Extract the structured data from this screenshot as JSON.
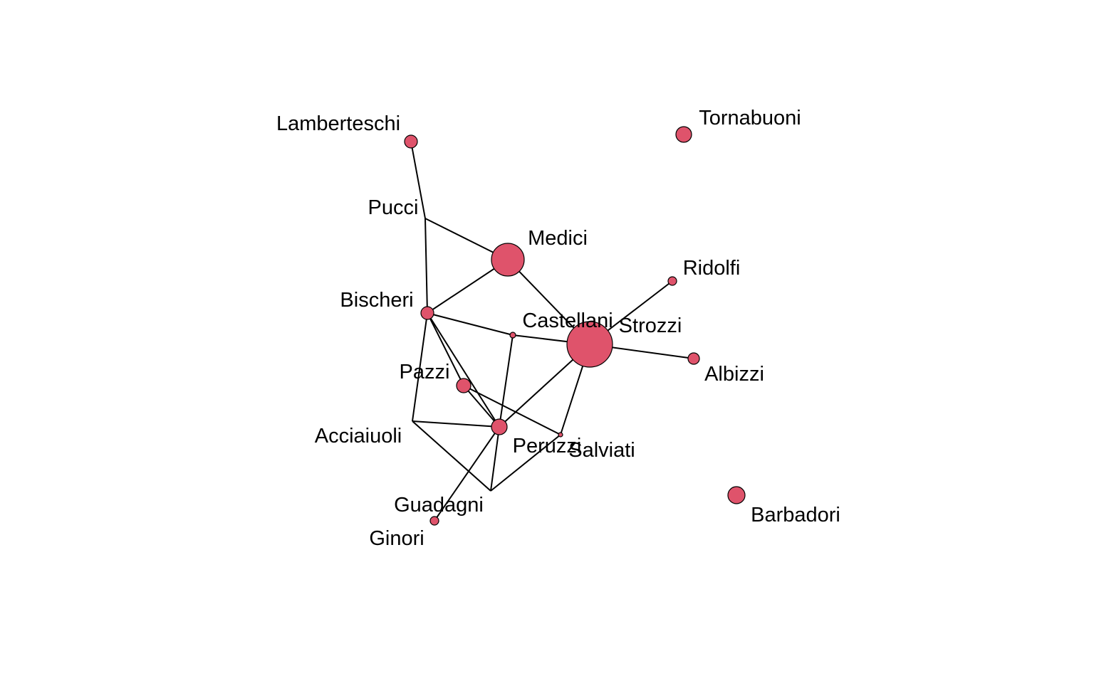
{
  "node_color": "#df536b",
  "edge_color": "#000000",
  "nodes": [
    {
      "id": "Lamberteschi",
      "label": "Lamberteschi"
    },
    {
      "id": "Tornabuoni",
      "label": "Tornabuoni"
    },
    {
      "id": "Pucci",
      "label": "Pucci"
    },
    {
      "id": "Medici",
      "label": "Medici"
    },
    {
      "id": "Ridolfi",
      "label": "Ridolfi"
    },
    {
      "id": "Bischeri",
      "label": "Bischeri"
    },
    {
      "id": "Castellani",
      "label": "Castellani"
    },
    {
      "id": "Strozzi",
      "label": "Strozzi"
    },
    {
      "id": "Albizzi",
      "label": "Albizzi"
    },
    {
      "id": "Pazzi",
      "label": "Pazzi"
    },
    {
      "id": "Acciaiuoli",
      "label": "Acciaiuoli"
    },
    {
      "id": "Peruzzi",
      "label": "Peruzzi"
    },
    {
      "id": "Salviati",
      "label": "Salviati"
    },
    {
      "id": "Guadagni",
      "label": "Guadagni"
    },
    {
      "id": "Ginori",
      "label": "Ginori"
    },
    {
      "id": "Barbadori",
      "label": "Barbadori"
    }
  ],
  "edges": [
    [
      "Lamberteschi",
      "Pucci"
    ],
    [
      "Pucci",
      "Medici"
    ],
    [
      "Pucci",
      "Bischeri"
    ],
    [
      "Medici",
      "Bischeri"
    ],
    [
      "Medici",
      "Strozzi"
    ],
    [
      "Strozzi",
      "Ridolfi"
    ],
    [
      "Strozzi",
      "Albizzi"
    ],
    [
      "Strozzi",
      "Castellani"
    ],
    [
      "Strozzi",
      "Peruzzi"
    ],
    [
      "Strozzi",
      "Salviati"
    ],
    [
      "Bischeri",
      "Castellani"
    ],
    [
      "Bischeri",
      "Pazzi"
    ],
    [
      "Bischeri",
      "Acciaiuoli"
    ],
    [
      "Bischeri",
      "Peruzzi"
    ],
    [
      "Castellani",
      "Peruzzi"
    ],
    [
      "Pazzi",
      "Peruzzi"
    ],
    [
      "Pazzi",
      "Salviati"
    ],
    [
      "Acciaiuoli",
      "Peruzzi"
    ],
    [
      "Acciaiuoli",
      "Guadagni"
    ],
    [
      "Peruzzi",
      "Guadagni"
    ],
    [
      "Peruzzi",
      "Ginori"
    ],
    [
      "Guadagni",
      "Salviati"
    ]
  ]
}
